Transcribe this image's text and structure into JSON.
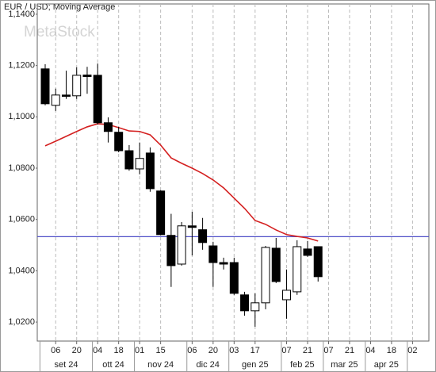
{
  "chart_data": {
    "type": "candlestick",
    "title": "EUR / USD; Moving Average",
    "watermark": "MetaStock",
    "categories": [
      null,
      "06",
      null,
      "20",
      null,
      "04",
      null,
      "18",
      null,
      "01",
      null,
      "15",
      null,
      null,
      "06",
      null,
      "20",
      null,
      "03",
      null,
      "17",
      null,
      null,
      "07",
      null,
      "21",
      null,
      "07",
      null,
      "21",
      null,
      "04",
      null,
      "18",
      null,
      "02"
    ],
    "x_groups": [
      {
        "label": "set 24",
        "size": 5
      },
      {
        "label": "ott 24",
        "size": 4
      },
      {
        "label": "nov 24",
        "size": 5
      },
      {
        "label": "dic 24",
        "size": 4
      },
      {
        "label": "gen 25",
        "size": 5
      },
      {
        "label": "feb 25",
        "size": 4
      },
      {
        "label": "mar 25",
        "size": 4
      },
      {
        "label": "apr 25",
        "size": 4
      }
    ],
    "open": [
      1.1187,
      1.1045,
      1.1085,
      1.1082,
      1.1163,
      1.1162,
      1.0977,
      1.094,
      1.0868,
      1.0797,
      1.0859,
      1.0711,
      1.0538,
      1.0426,
      1.0575,
      1.056,
      1.0497,
      1.0432,
      1.0432,
      1.0306,
      1.0244,
      1.0275,
      1.0488,
      1.0287,
      1.0318,
      1.0485,
      1.0494,
      null,
      null,
      null,
      null,
      null,
      null,
      null,
      null,
      null
    ],
    "high": [
      1.1205,
      1.111,
      1.118,
      1.1193,
      1.1195,
      1.1208,
      1.0998,
      1.0961,
      1.089,
      1.09,
      1.0881,
      1.0714,
      1.0622,
      1.059,
      1.063,
      1.0606,
      1.0513,
      1.0451,
      1.0451,
      1.0318,
      1.0312,
      1.0497,
      1.0528,
      1.0405,
      1.0519,
      1.0516,
      1.0494,
      null,
      null,
      null,
      null,
      null,
      null,
      null,
      null,
      null
    ],
    "low": [
      1.1045,
      1.1023,
      1.107,
      1.107,
      1.109,
      1.097,
      1.09,
      1.0862,
      1.079,
      1.0776,
      1.0708,
      1.0538,
      1.0337,
      1.042,
      1.046,
      1.0482,
      1.0337,
      1.0405,
      1.0306,
      1.0225,
      1.0182,
      1.025,
      1.0352,
      1.0213,
      1.0306,
      1.0454,
      1.0358,
      null,
      null,
      null,
      null,
      null,
      null,
      null,
      null,
      null
    ],
    "close": [
      1.1051,
      1.1085,
      1.108,
      1.1162,
      1.1157,
      1.0977,
      1.0943,
      1.0868,
      1.0797,
      1.0838,
      1.072,
      1.0541,
      1.042,
      1.0575,
      1.0569,
      1.051,
      1.0432,
      1.0426,
      1.0312,
      1.0244,
      1.0275,
      1.0491,
      1.0358,
      1.0324,
      1.0494,
      1.046,
      1.0377,
      null,
      null,
      null,
      null,
      null,
      null,
      null,
      null,
      null
    ],
    "up_color": "#ffffff",
    "down_color": "#000000",
    "moving_average": {
      "color": "#d42020",
      "values": [
        1.0887,
        1.0905,
        1.0924,
        1.0943,
        1.0961,
        1.0973,
        1.097,
        1.0958,
        1.0945,
        1.0943,
        1.093,
        1.089,
        1.084,
        1.0819,
        1.08,
        1.0779,
        1.0754,
        1.0723,
        1.0683,
        1.0643,
        1.0596,
        1.0581,
        1.0559,
        1.0541,
        1.0534,
        1.0528,
        1.0516,
        null,
        null,
        null,
        null,
        null,
        null,
        null,
        null,
        null
      ]
    },
    "reference_line": {
      "value": 1.0533,
      "color": "#5050c8"
    },
    "ylim": [
      1.0126,
      1.144
    ],
    "yticks": [
      {
        "value": 1.02,
        "label": "1,0200"
      },
      {
        "value": 1.04,
        "label": "1,0400"
      },
      {
        "value": 1.06,
        "label": "1,0600"
      },
      {
        "value": 1.08,
        "label": "1,0800"
      },
      {
        "value": 1.1,
        "label": "1,1000"
      },
      {
        "value": 1.12,
        "label": "1,1200"
      },
      {
        "value": 1.14,
        "label": "1,1400"
      }
    ],
    "x_grid": true
  }
}
